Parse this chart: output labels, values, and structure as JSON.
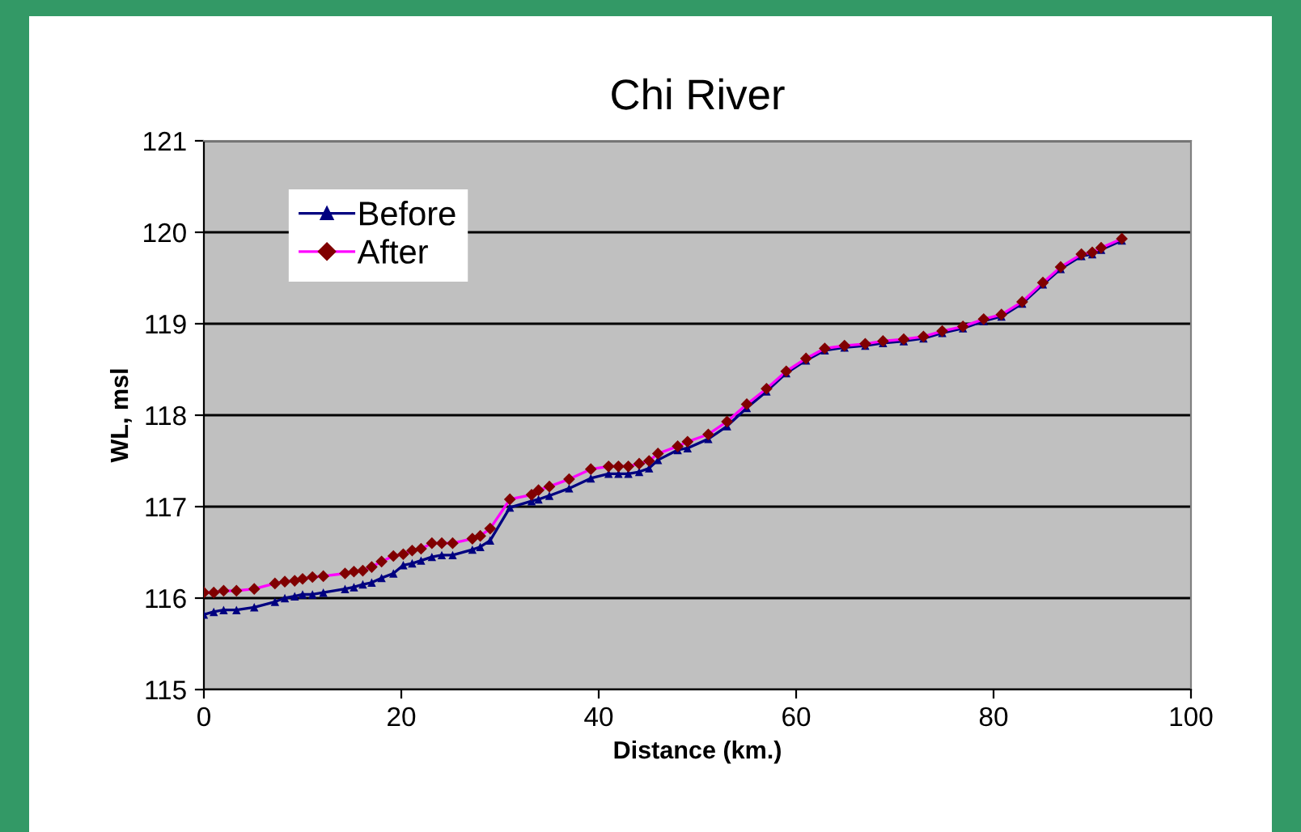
{
  "chart_data": {
    "type": "line",
    "title": "Chi River",
    "xlabel": "Distance (km.)",
    "ylabel": "WL, msl",
    "x": [
      0,
      1,
      2,
      3.3,
      5.1,
      7.2,
      8.2,
      9.2,
      10,
      11,
      12.1,
      14.3,
      15.2,
      16.1,
      17,
      18,
      19.2,
      20.2,
      21.1,
      22,
      23.1,
      24.1,
      25.2,
      27.2,
      28,
      29,
      31,
      33.2,
      33.9,
      35,
      37,
      39.2,
      41,
      42,
      43,
      44.1,
      45.1,
      46,
      48,
      49,
      51.1,
      53,
      55,
      57,
      59,
      61,
      62.9,
      64.9,
      67,
      68.8,
      70.9,
      72.9,
      74.8,
      76.9,
      79,
      80.8,
      82.9,
      85,
      86.8,
      88.9,
      90,
      90.9,
      93
    ],
    "series": [
      {
        "name": "Before",
        "color": "#000080",
        "marker": "triangle",
        "values": [
          115.82,
          115.85,
          115.87,
          115.87,
          115.9,
          115.96,
          116.0,
          116.02,
          116.04,
          116.04,
          116.06,
          116.1,
          116.12,
          116.15,
          116.17,
          116.22,
          116.27,
          116.36,
          116.38,
          116.41,
          116.45,
          116.47,
          116.47,
          116.53,
          116.56,
          116.63,
          116.99,
          117.06,
          117.08,
          117.12,
          117.2,
          117.31,
          117.36,
          117.36,
          117.36,
          117.38,
          117.42,
          117.51,
          117.62,
          117.64,
          117.74,
          117.88,
          118.08,
          118.26,
          118.46,
          118.6,
          118.71,
          118.74,
          118.76,
          118.79,
          118.81,
          118.84,
          118.9,
          118.95,
          119.03,
          119.08,
          119.22,
          119.43,
          119.6,
          119.74,
          119.76,
          119.81,
          119.91
        ]
      },
      {
        "name": "After",
        "color": "#ff00ff",
        "marker": "diamond",
        "colors": [
          "#800000",
          "#800000",
          "#800000",
          "#800000",
          "#800000",
          "#800000",
          "#800000",
          "#800000",
          "#800000",
          "#800000",
          "#800000",
          "#800000",
          "#800000",
          "#800000",
          "#800000",
          "#800000",
          "#800000",
          "#800000",
          "#800000",
          "#800000",
          "#800000",
          "#800000",
          "#800000",
          "#800000",
          "#800000",
          "#800000",
          "#800000",
          "#800000",
          "#800000",
          "#800000",
          "#800000",
          "#800000",
          "#800000",
          "#800000",
          "#800000",
          "#800000",
          "#800000",
          "#800000",
          "#800000",
          "#800000",
          "#800000",
          "#800000",
          "#800000",
          "#800000",
          "#800000",
          "#800000",
          "#800000",
          "#800000",
          "#800000",
          "#800000",
          "#800000",
          "#800000",
          "#800000",
          "#800000",
          "#800000",
          "#800000",
          "#800000",
          "#800000",
          "#800000",
          "#800000",
          "#800000",
          "#800000",
          "#800000"
        ],
        "values": [
          116.06,
          116.06,
          116.08,
          116.08,
          116.1,
          116.16,
          116.18,
          116.19,
          116.21,
          116.23,
          116.24,
          116.27,
          116.29,
          116.3,
          116.34,
          116.4,
          116.46,
          116.48,
          116.52,
          116.54,
          116.6,
          116.6,
          116.6,
          116.65,
          116.68,
          116.76,
          117.08,
          117.13,
          117.18,
          117.22,
          117.3,
          117.41,
          117.44,
          117.44,
          117.44,
          117.47,
          117.5,
          117.58,
          117.66,
          117.71,
          117.79,
          117.93,
          118.12,
          118.29,
          118.48,
          118.62,
          118.73,
          118.76,
          118.78,
          118.81,
          118.83,
          118.86,
          118.92,
          118.97,
          119.05,
          119.1,
          119.24,
          119.45,
          119.62,
          119.76,
          119.78,
          119.83,
          119.93
        ]
      }
    ],
    "xlim": [
      0,
      100
    ],
    "xticks": [
      0,
      20,
      40,
      60,
      80,
      100
    ],
    "ylim": [
      115,
      121
    ],
    "yticks": [
      115,
      116,
      117,
      118,
      119,
      120,
      121
    ],
    "grid": "y",
    "legend": "top left"
  }
}
